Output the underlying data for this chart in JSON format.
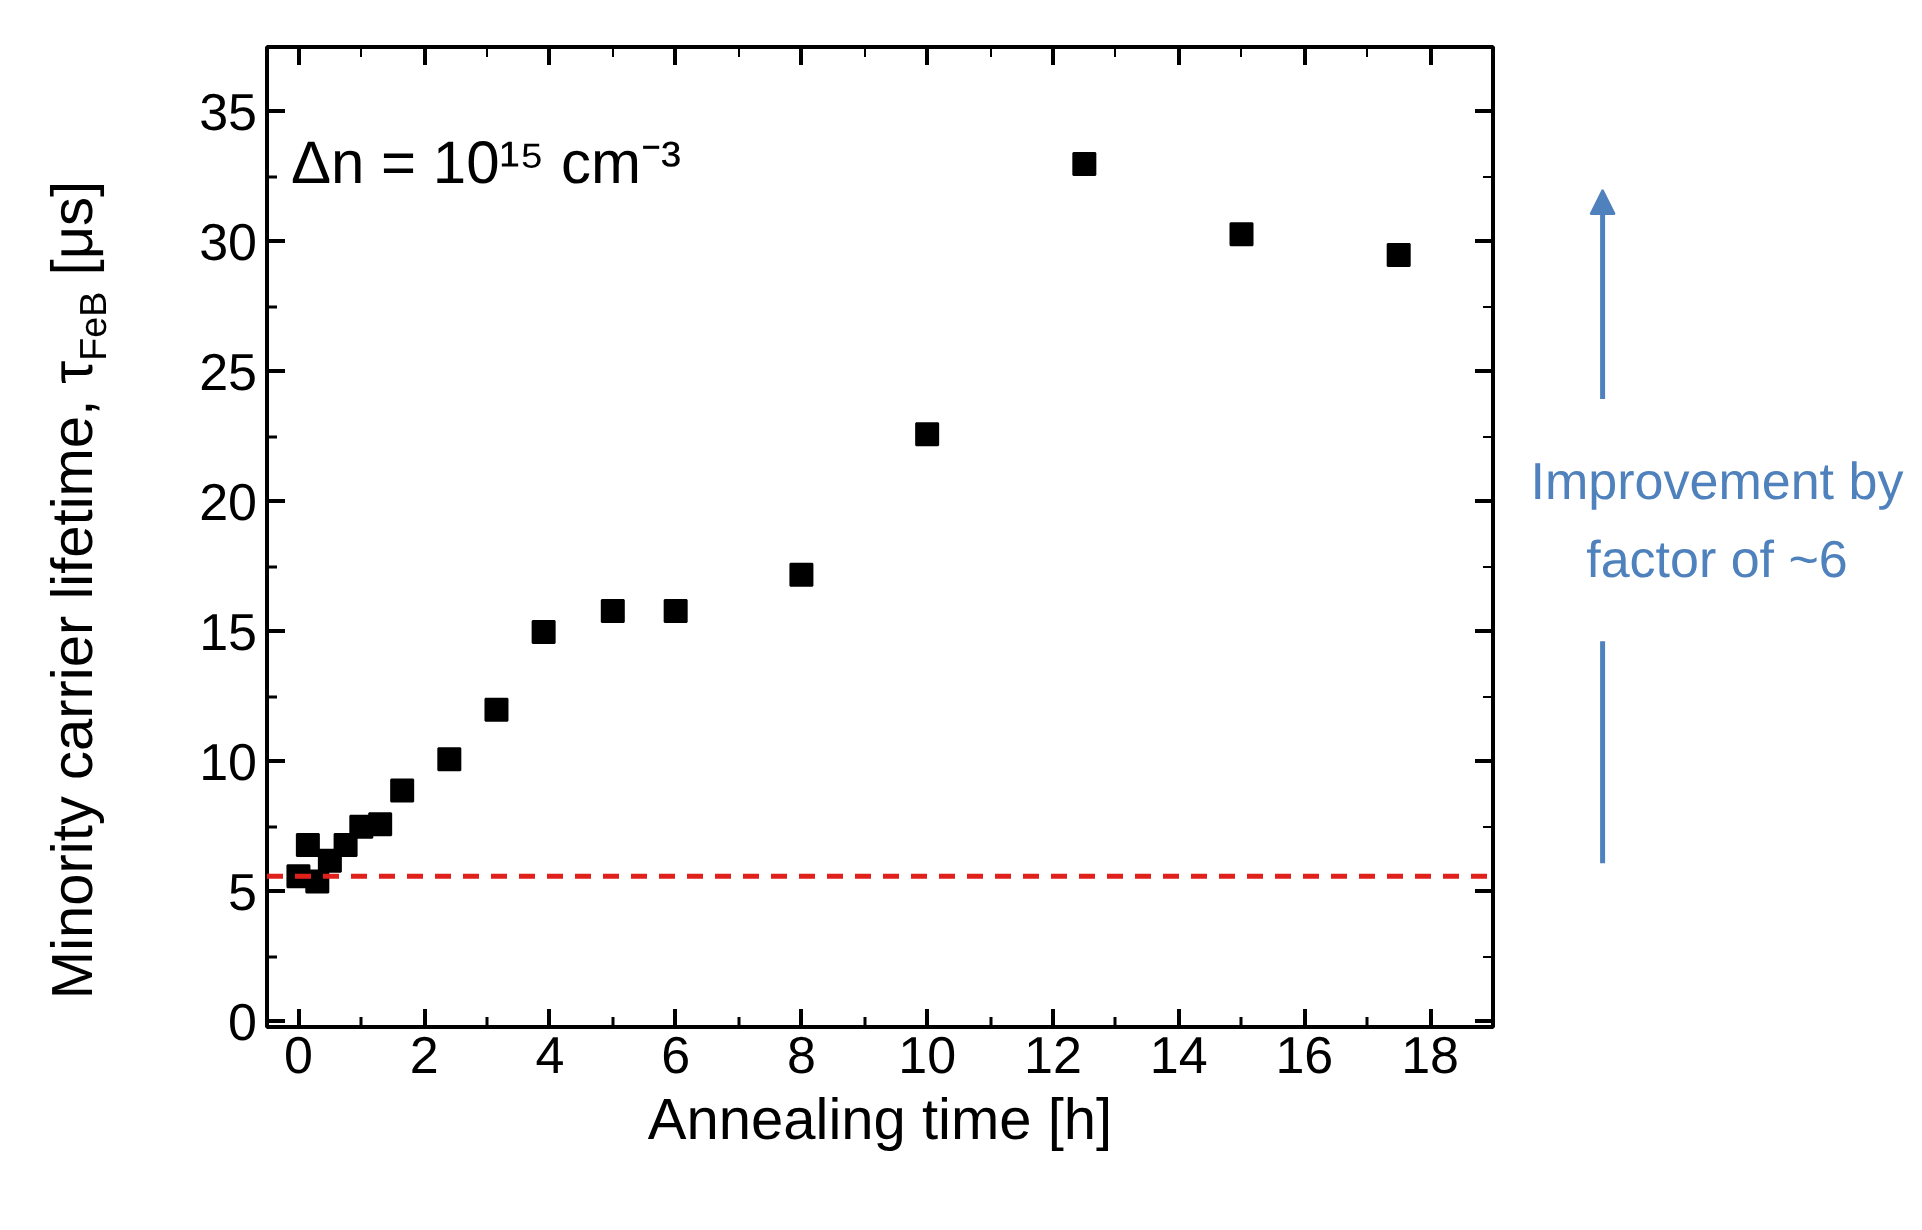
{
  "chart_data": {
    "type": "scatter",
    "xlabel": "Annealing time [h]",
    "ylabel": "Minority carrier lifetime, τ$_{FeB}$ [μs]",
    "annotations": [
      "Δn = 10¹⁵ cm⁻³",
      "Improvement by\nfactor of ~6"
    ],
    "x": [
      0,
      0.15,
      0.3,
      0.5,
      0.75,
      1,
      1.3,
      1.65,
      2.4,
      3.15,
      3.9,
      5,
      6,
      8,
      10,
      12.5,
      15,
      17.5
    ],
    "series": [
      {
        "color": "#000000",
        "values": [
          5.6,
          6.8,
          5.4,
          6.2,
          6.8,
          7.5,
          7.6,
          8.9,
          10.1,
          12.0,
          15.0,
          15.8,
          15.8,
          17.2,
          22.6,
          33.0,
          30.3,
          29.5
        ]
      }
    ],
    "marker": "square",
    "xlim": [
      -0.5,
      19
    ],
    "ylim": [
      -0.2,
      37.5
    ],
    "xticks": [
      0,
      2,
      4,
      6,
      8,
      10,
      12,
      14,
      16,
      18
    ],
    "yticks": [
      0,
      5,
      10,
      15,
      20,
      25,
      30,
      35
    ],
    "ref_lines": [
      {
        "axis": "y",
        "value": 5.6,
        "color": "#e0201b",
        "line_style": "dashed"
      }
    ],
    "grid": false
  }
}
